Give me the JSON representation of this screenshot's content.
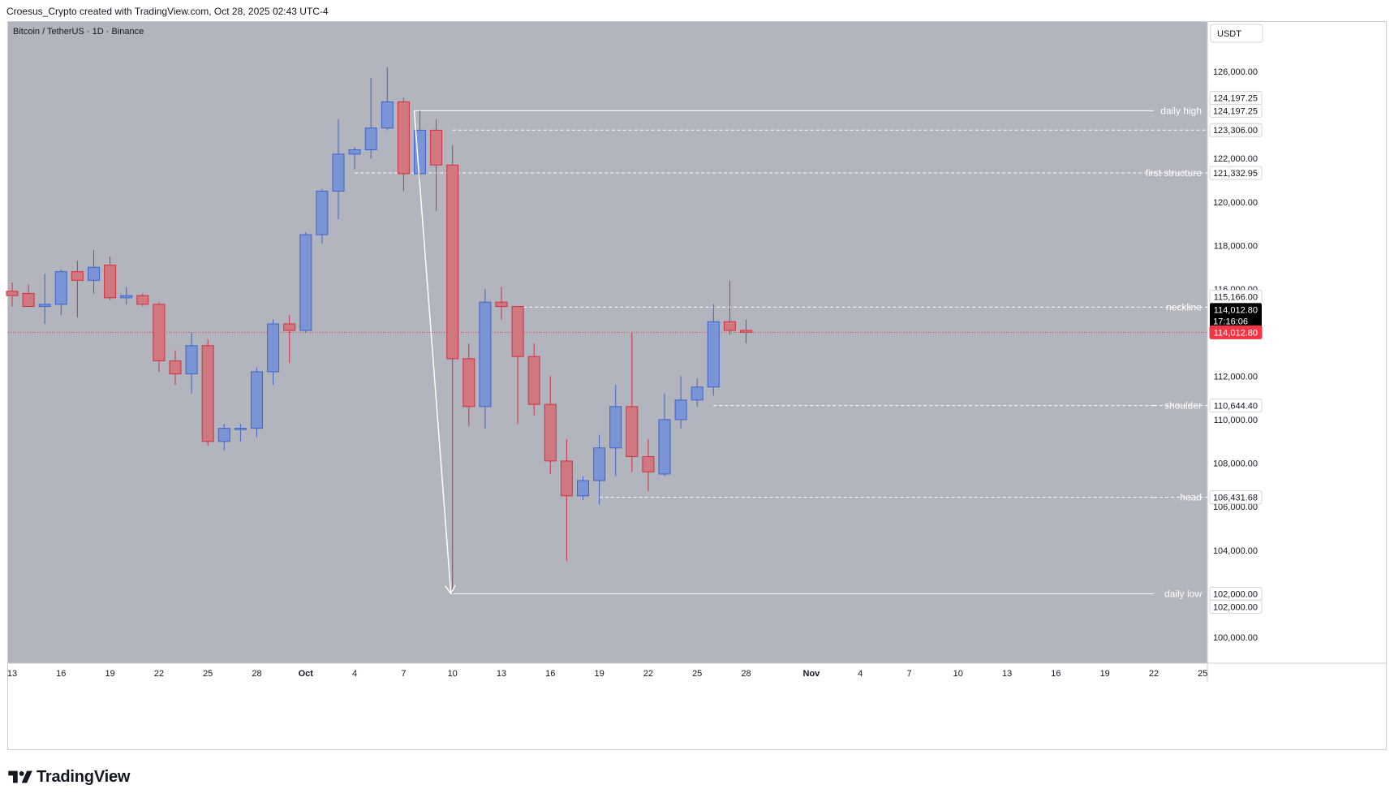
{
  "header": {
    "credit": "Croesus_Crypto created with TradingView.com, Oct 28, 2025 02:43 UTC-4"
  },
  "branding": {
    "logo_text": "TradingView"
  },
  "chart_data": {
    "type": "candlestick",
    "symbol": "Bitcoin / TetherUS · 1D · Binance",
    "currency": "USDT",
    "colors": {
      "background": "#b2b5be",
      "up": "#7b94d6",
      "up_border": "#3f63c9",
      "down": "#cf7880",
      "down_border": "#d1303f",
      "level_line": "#ffffff",
      "last_price": "#f23645"
    },
    "ylim": [
      98000,
      127500
    ],
    "y_ticks": [
      100000,
      102000,
      104000,
      106000,
      108000,
      110000,
      112000,
      114000,
      116000,
      118000,
      120000,
      122000,
      124000,
      126000
    ],
    "y_tick_labels": [
      "100,000.00",
      "102,000.00",
      "104,000.00",
      "106,000.00",
      "108,000.00",
      "110,000.00",
      "112,000.00",
      "",
      "116,000.00",
      "118,000.00",
      "120,000.00",
      "122,000.00",
      "",
      "126,000.00"
    ],
    "x_ticks": [
      {
        "i": 0,
        "label": "13"
      },
      {
        "i": 3,
        "label": "16"
      },
      {
        "i": 6,
        "label": "19"
      },
      {
        "i": 9,
        "label": "22"
      },
      {
        "i": 12,
        "label": "25"
      },
      {
        "i": 15,
        "label": "28"
      },
      {
        "i": 18,
        "label": "Oct"
      },
      {
        "i": 21,
        "label": "4"
      },
      {
        "i": 24,
        "label": "7"
      },
      {
        "i": 27,
        "label": "10"
      },
      {
        "i": 30,
        "label": "13"
      },
      {
        "i": 33,
        "label": "16"
      },
      {
        "i": 36,
        "label": "19"
      },
      {
        "i": 39,
        "label": "22"
      },
      {
        "i": 42,
        "label": "25"
      },
      {
        "i": 45,
        "label": "28"
      },
      {
        "i": 49,
        "label": "Nov"
      },
      {
        "i": 52,
        "label": "4"
      },
      {
        "i": 55,
        "label": "7"
      },
      {
        "i": 58,
        "label": "10"
      },
      {
        "i": 61,
        "label": "13"
      },
      {
        "i": 64,
        "label": "16"
      },
      {
        "i": 67,
        "label": "19"
      },
      {
        "i": 70,
        "label": "22"
      },
      {
        "i": 73,
        "label": "25"
      }
    ],
    "candles": [
      {
        "o": 115900,
        "h": 116300,
        "l": 115200,
        "c": 115700
      },
      {
        "o": 115800,
        "h": 116200,
        "l": 115200,
        "c": 115200
      },
      {
        "o": 115200,
        "h": 116700,
        "l": 114400,
        "c": 115300
      },
      {
        "o": 115300,
        "h": 116900,
        "l": 114800,
        "c": 116800
      },
      {
        "o": 116800,
        "h": 117300,
        "l": 114700,
        "c": 116400
      },
      {
        "o": 116400,
        "h": 117800,
        "l": 115800,
        "c": 117000
      },
      {
        "o": 117100,
        "h": 117500,
        "l": 115500,
        "c": 115600
      },
      {
        "o": 115600,
        "h": 116100,
        "l": 115300,
        "c": 115700
      },
      {
        "o": 115700,
        "h": 115800,
        "l": 115200,
        "c": 115300
      },
      {
        "o": 115300,
        "h": 115400,
        "l": 112200,
        "c": 112700
      },
      {
        "o": 112700,
        "h": 113200,
        "l": 111600,
        "c": 112100
      },
      {
        "o": 112100,
        "h": 114000,
        "l": 111200,
        "c": 113400
      },
      {
        "o": 113400,
        "h": 113700,
        "l": 108800,
        "c": 109000
      },
      {
        "o": 109000,
        "h": 109800,
        "l": 108600,
        "c": 109600
      },
      {
        "o": 109600,
        "h": 109800,
        "l": 109000,
        "c": 109600
      },
      {
        "o": 109600,
        "h": 112400,
        "l": 109200,
        "c": 112200
      },
      {
        "o": 112200,
        "h": 114600,
        "l": 111600,
        "c": 114400
      },
      {
        "o": 114400,
        "h": 114800,
        "l": 112600,
        "c": 114100
      },
      {
        "o": 114100,
        "h": 118600,
        "l": 114000,
        "c": 118500
      },
      {
        "o": 118500,
        "h": 120600,
        "l": 118100,
        "c": 120500
      },
      {
        "o": 120500,
        "h": 123800,
        "l": 119200,
        "c": 122200
      },
      {
        "o": 122200,
        "h": 122500,
        "l": 121500,
        "c": 122400
      },
      {
        "o": 122400,
        "h": 125700,
        "l": 122000,
        "c": 123400
      },
      {
        "o": 123400,
        "h": 126200,
        "l": 123300,
        "c": 124600
      },
      {
        "o": 124600,
        "h": 124800,
        "l": 120500,
        "c": 121300
      },
      {
        "o": 121300,
        "h": 124197.25,
        "l": 120900,
        "c": 123300
      },
      {
        "o": 123300,
        "h": 123800,
        "l": 119600,
        "c": 121700
      },
      {
        "o": 121700,
        "h": 122600,
        "l": 102000,
        "c": 112800
      },
      {
        "o": 112800,
        "h": 113500,
        "l": 109700,
        "c": 110600
      },
      {
        "o": 110600,
        "h": 116000,
        "l": 109600,
        "c": 115400
      },
      {
        "o": 115400,
        "h": 116100,
        "l": 114600,
        "c": 115200
      },
      {
        "o": 115200,
        "h": 115200,
        "l": 109800,
        "c": 112900
      },
      {
        "o": 112900,
        "h": 113500,
        "l": 110200,
        "c": 110700
      },
      {
        "o": 110700,
        "h": 112000,
        "l": 107500,
        "c": 108100
      },
      {
        "o": 108100,
        "h": 109100,
        "l": 103500,
        "c": 106500
      },
      {
        "o": 106500,
        "h": 107400,
        "l": 106300,
        "c": 107200
      },
      {
        "o": 107200,
        "h": 109300,
        "l": 106100,
        "c": 108700
      },
      {
        "o": 108700,
        "h": 111600,
        "l": 107400,
        "c": 110600
      },
      {
        "o": 110600,
        "h": 114000,
        "l": 107600,
        "c": 108300
      },
      {
        "o": 108300,
        "h": 109100,
        "l": 106700,
        "c": 107600
      },
      {
        "o": 107500,
        "h": 111200,
        "l": 107400,
        "c": 110000
      },
      {
        "o": 110000,
        "h": 112000,
        "l": 109600,
        "c": 110900
      },
      {
        "o": 110900,
        "h": 111900,
        "l": 110600,
        "c": 111500
      },
      {
        "o": 111500,
        "h": 115300,
        "l": 111100,
        "c": 114500
      },
      {
        "o": 114500,
        "h": 116400,
        "l": 113900,
        "c": 114100
      },
      {
        "o": 114100,
        "h": 114600,
        "l": 113500,
        "c": 114012.8
      }
    ],
    "levels": [
      {
        "name": "daily high",
        "price": 124197.25,
        "style": "solid",
        "from": 25,
        "label": "124,197.25"
      },
      {
        "name": "first structure",
        "price": 121332.95,
        "style": "dashed",
        "from": 21,
        "label": "121,332.95"
      },
      {
        "name": "neckline",
        "price": 115166.0,
        "style": "dashed",
        "from": 31,
        "label": "115,166.00"
      },
      {
        "name": "shoulder",
        "price": 110644.4,
        "style": "dashed",
        "from": 43,
        "label": "110,644.40"
      },
      {
        "name": "head",
        "price": 106431.68,
        "style": "dashed",
        "from": 36,
        "label": "106,431.68"
      },
      {
        "name": "daily low",
        "price": 102000.0,
        "style": "solid",
        "from": 27,
        "label": "102,000.00"
      }
    ],
    "extra_price_labels": [
      {
        "price": 123306.0,
        "label": "123,306.00",
        "style": "dashed",
        "from": 27
      },
      {
        "price": 124197.25,
        "label": "124,197.25",
        "style": "none"
      },
      {
        "price": 102000.0,
        "label": "102,000.00",
        "style": "none"
      }
    ],
    "last_price": {
      "price": 114012.8,
      "label": "114,012.80",
      "countdown": "17:16:06"
    },
    "arrow": {
      "from_i": 25,
      "from_price": 124197.25,
      "to_i": 27,
      "to_price": 102000.0
    }
  }
}
